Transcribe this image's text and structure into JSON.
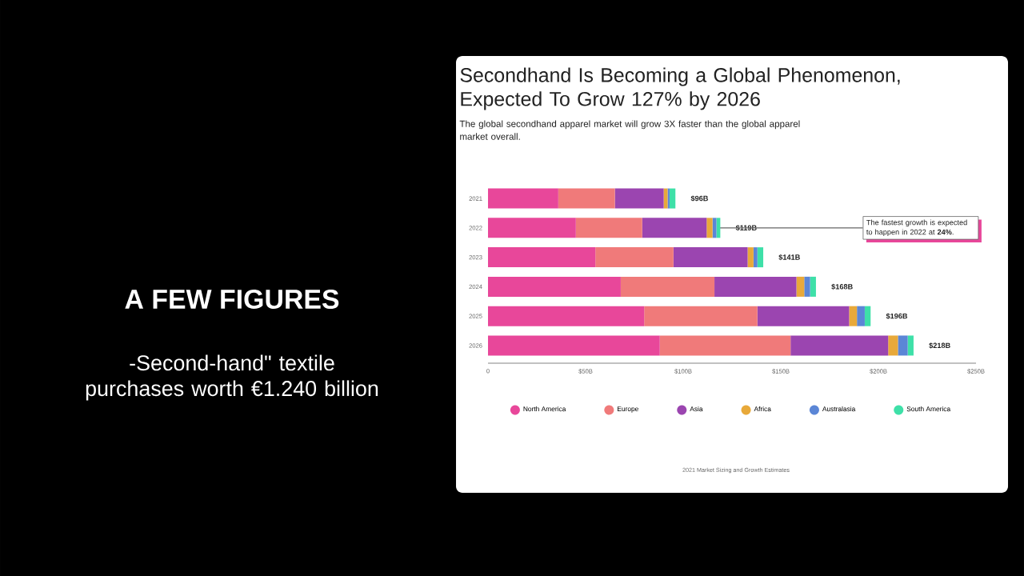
{
  "chart_data": {
    "type": "bar",
    "orientation": "horizontal",
    "stacked": true,
    "title": "Secondhand Is Becoming a Global Phenomenon, Expected To Grow 127% by 2026",
    "subtitle": "The global secondhand apparel market will grow 3X faster than the global apparel market overall.",
    "categories": [
      "2021",
      "2022",
      "2023",
      "2024",
      "2025",
      "2026"
    ],
    "series": [
      {
        "name": "North America",
        "color": "#e8479a",
        "values": [
          36,
          45,
          55,
          68,
          80,
          88
        ]
      },
      {
        "name": "Europe",
        "color": "#f07a7a",
        "values": [
          29,
          34,
          40,
          48,
          58,
          67
        ]
      },
      {
        "name": "Asia",
        "color": "#9b45b0",
        "values": [
          25,
          33,
          38,
          42,
          47,
          50
        ]
      },
      {
        "name": "Africa",
        "color": "#e8a93a",
        "values": [
          2,
          3,
          3,
          4,
          4,
          5
        ]
      },
      {
        "name": "Australasia",
        "color": "#5b86d6",
        "values": [
          1,
          2,
          2,
          3,
          4,
          5
        ]
      },
      {
        "name": "South America",
        "color": "#3ee0a8",
        "values": [
          3,
          2,
          3,
          3,
          3,
          3
        ]
      }
    ],
    "totals": [
      "$96B",
      "$119B",
      "$141B",
      "$168B",
      "$196B",
      "$218B"
    ],
    "xlim": [
      0,
      250
    ],
    "xticks": [
      0,
      {
        "value": 50,
        "label": "$50B"
      },
      {
        "value": 100,
        "label": "$100B"
      },
      {
        "value": 150,
        "label": "$150B"
      },
      {
        "value": 200,
        "label": "$200B"
      },
      {
        "value": 250,
        "label": "$250B"
      }
    ],
    "legend": "bottom",
    "grid": false,
    "annotations": [
      "A FEW FIGURES",
      "-Second-hand\" textile purchases worth €1.240 billion",
      {
        "text": "The fastest growth is expected to happen in 2022 at **24%**.",
        "x": 118,
        "y": "2022"
      },
      "2021 Market Sizing and Growth Estimates"
    ]
  }
}
